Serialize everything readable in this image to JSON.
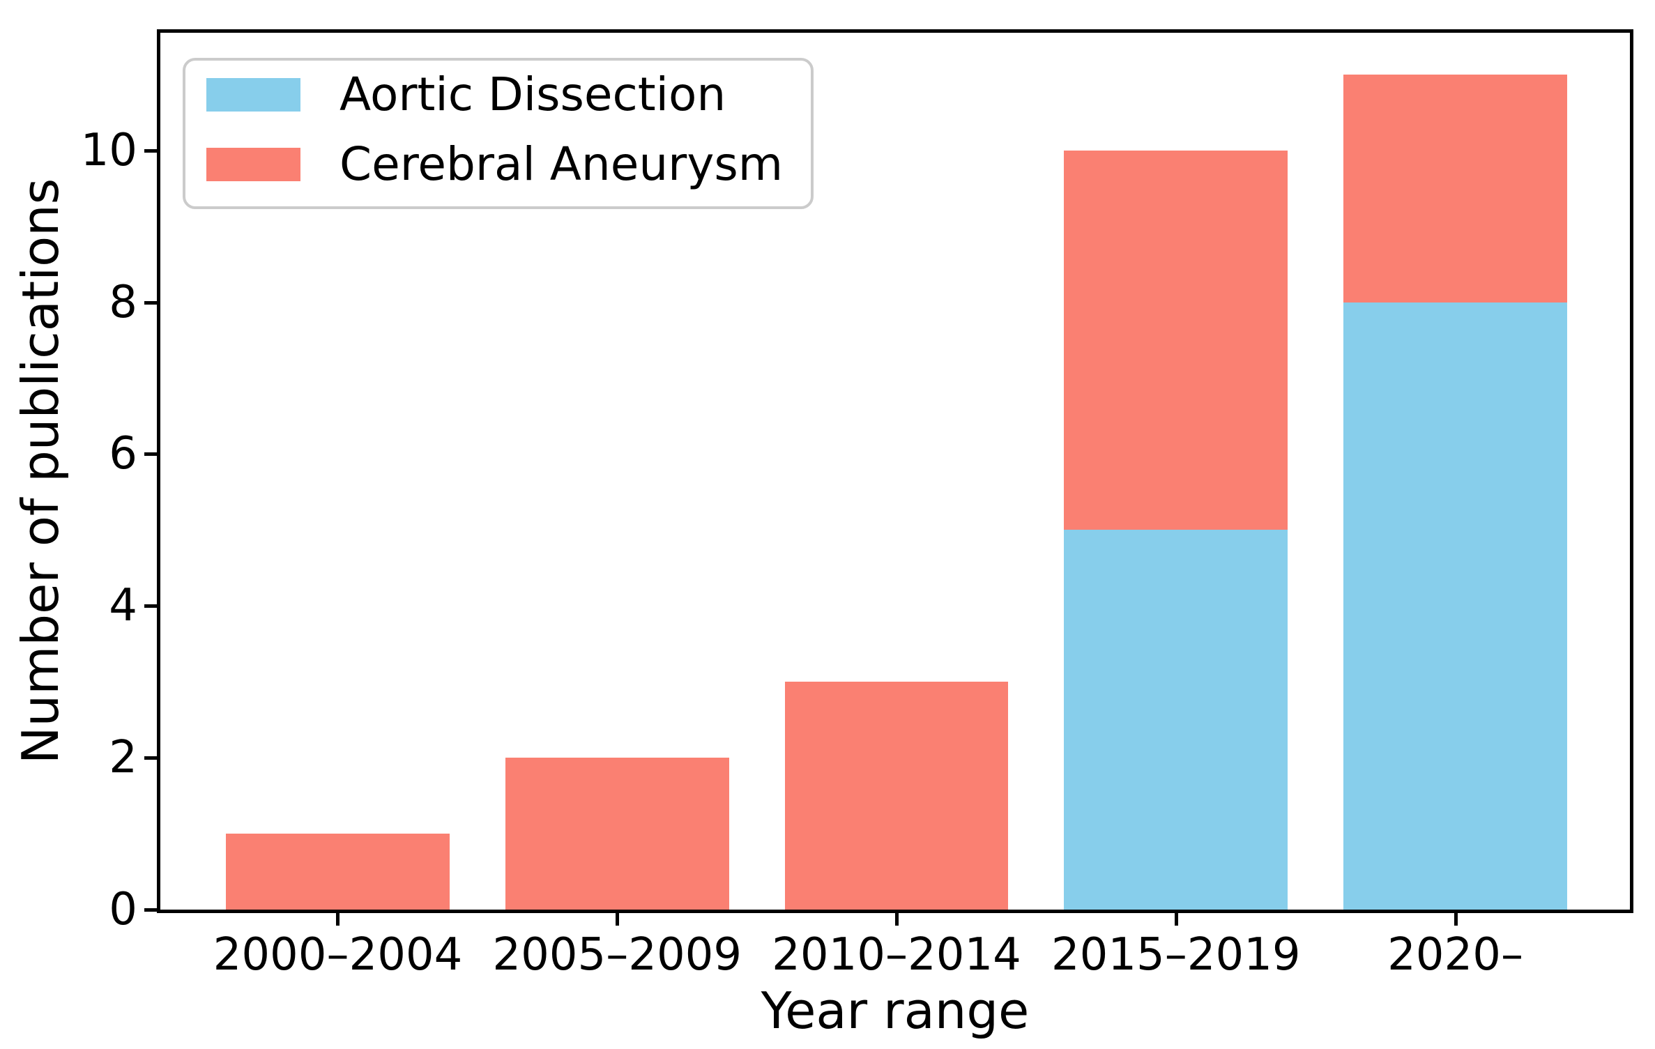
{
  "chart_data": {
    "type": "bar",
    "stacked": true,
    "title": "",
    "xlabel": "Year range",
    "ylabel": "Number of publications",
    "categories": [
      "2000–2004",
      "2005–2009",
      "2010–2014",
      "2015–2019",
      "2020–"
    ],
    "series": [
      {
        "name": "Aortic Dissection",
        "color": "#87CEEB",
        "values": [
          0,
          0,
          0,
          5,
          8
        ]
      },
      {
        "name": "Cerebral Aneurysm",
        "color": "#FA8072",
        "values": [
          1,
          2,
          3,
          5,
          3
        ]
      }
    ],
    "totals": [
      1,
      2,
      3,
      10,
      11
    ],
    "yticks": [
      0,
      2,
      4,
      6,
      8,
      10
    ],
    "ylim": [
      0,
      11.55
    ],
    "grid": false,
    "legend": {
      "position": "upper left",
      "entries": [
        "Aortic Dissection",
        "Cerebral Aneurysm"
      ]
    },
    "colors": {
      "background": "#ffffff",
      "axis": "#000000",
      "tick_label": "#000000",
      "legend_border": "#cbcbcb"
    }
  }
}
